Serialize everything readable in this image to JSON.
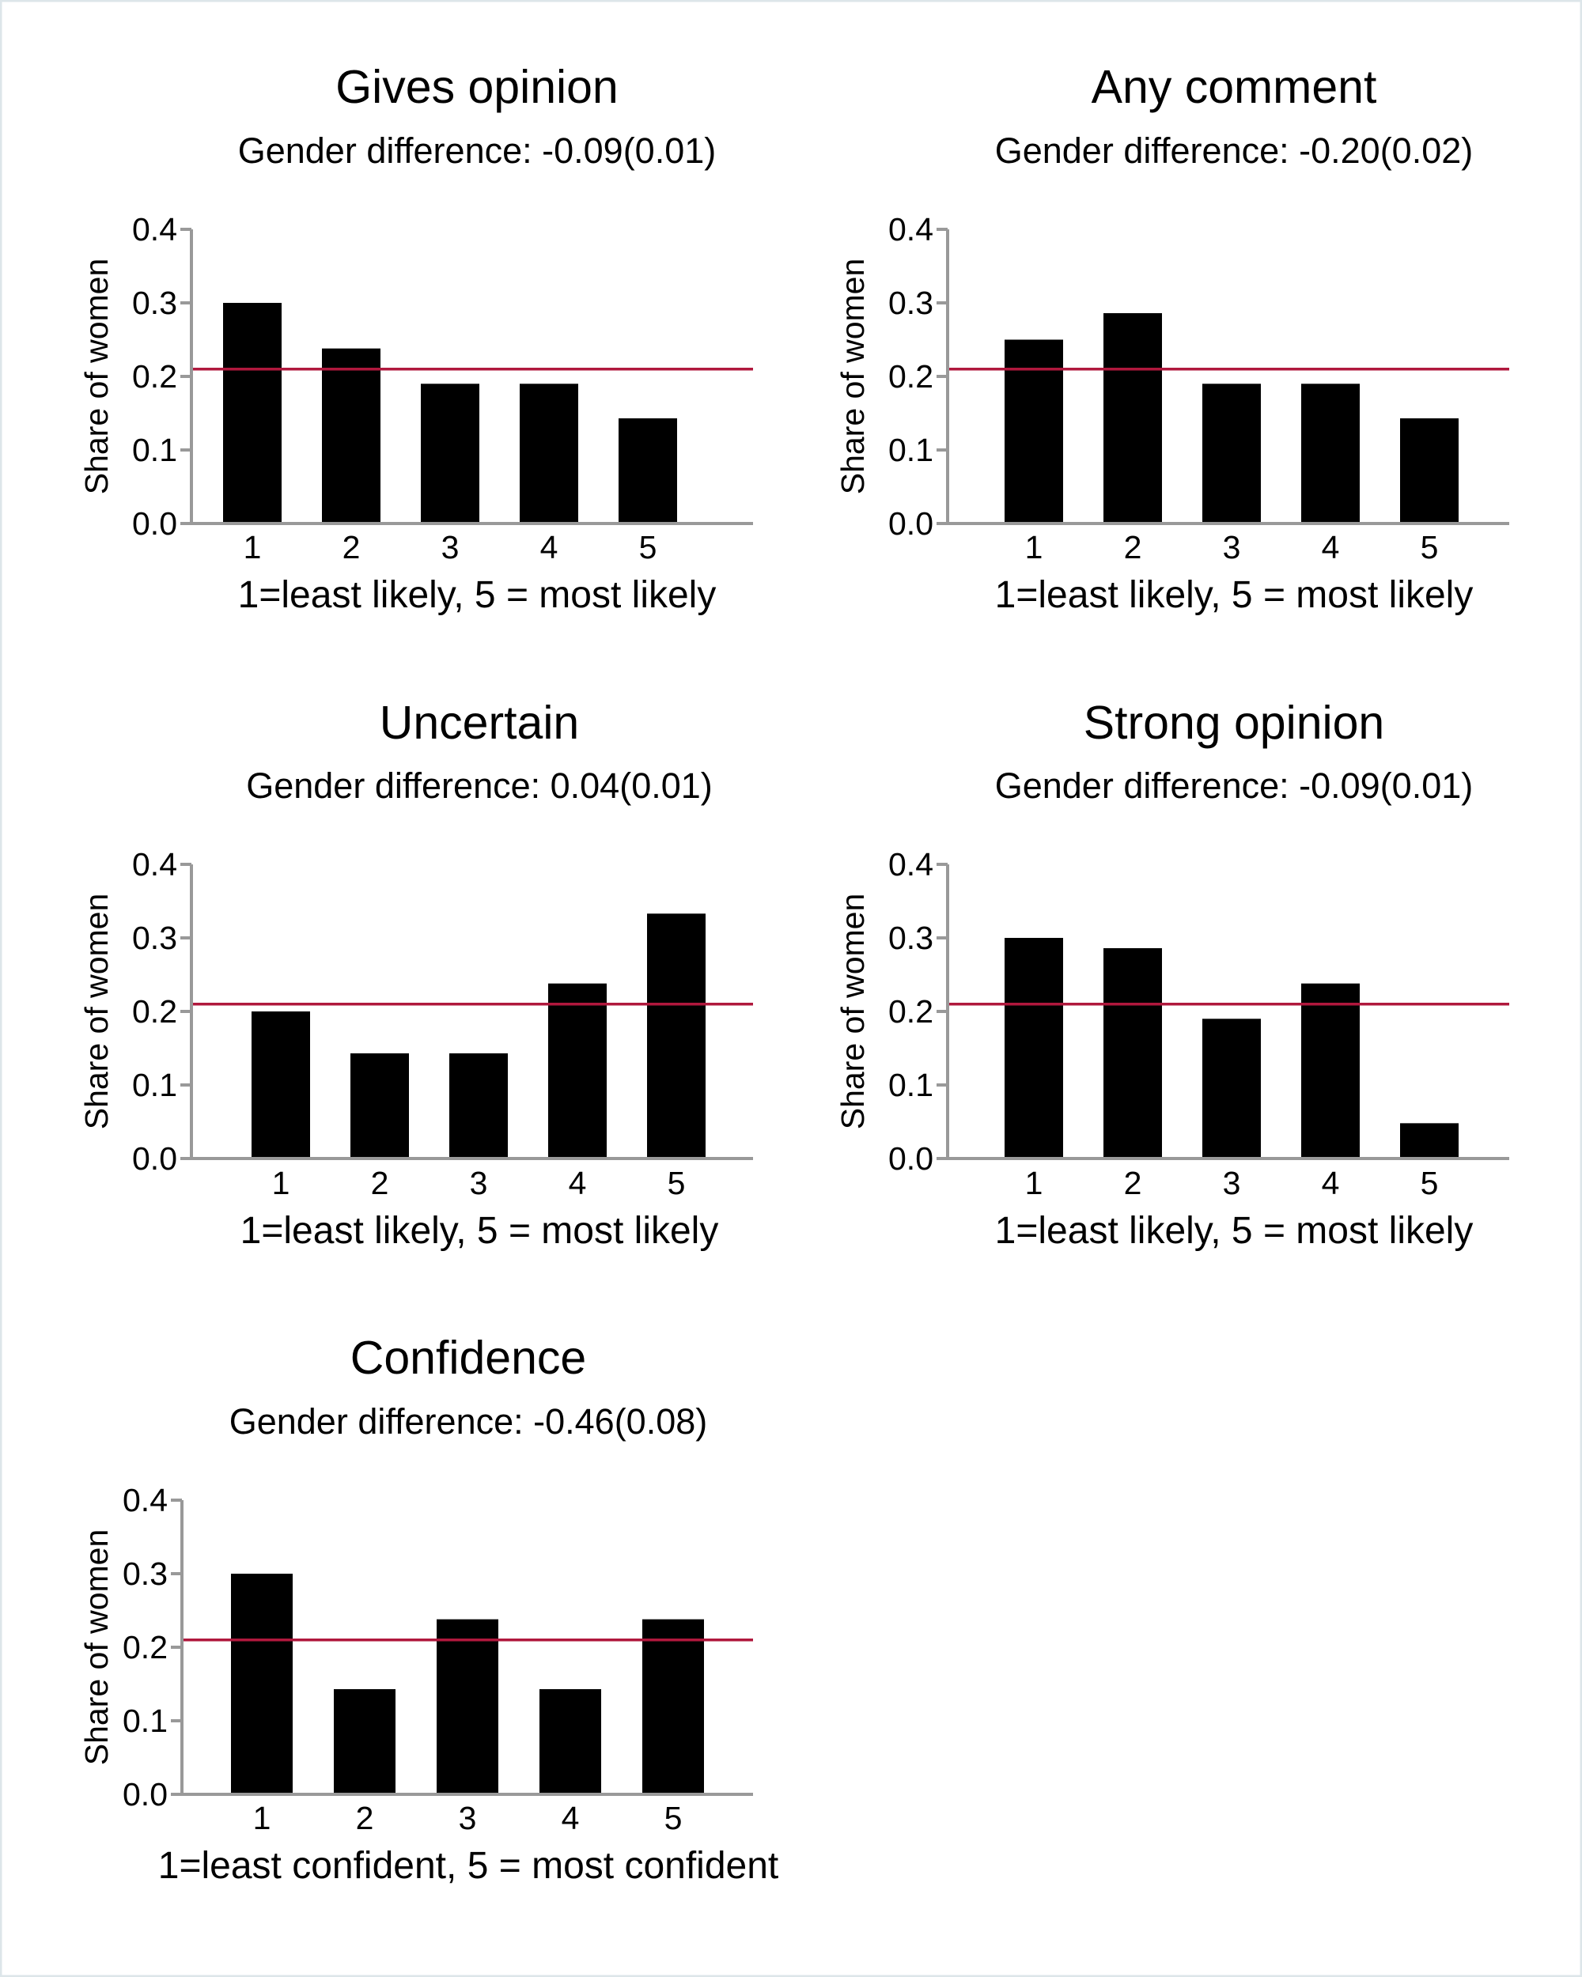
{
  "chart_data": [
    {
      "type": "bar",
      "title": "Gives opinion",
      "subtitle": "Gender difference: -0.09(0.01)",
      "xlabel": "1=least likely, 5 = most likely",
      "ylabel": "Share of women",
      "categories": [
        "1",
        "2",
        "3",
        "4",
        "5"
      ],
      "values": [
        0.3,
        0.238,
        0.19,
        0.19,
        0.143
      ],
      "ylim": [
        0,
        0.4
      ],
      "yticks": [
        "0.0",
        "0.1",
        "0.2",
        "0.3",
        "0.4"
      ],
      "reference_line": 0.21,
      "grid": false
    },
    {
      "type": "bar",
      "title": "Any comment",
      "subtitle": "Gender difference: -0.20(0.02)",
      "xlabel": "1=least likely, 5 = most likely",
      "ylabel": "Share of women",
      "categories": [
        "1",
        "2",
        "3",
        "4",
        "5"
      ],
      "values": [
        0.25,
        0.286,
        0.19,
        0.19,
        0.143
      ],
      "ylim": [
        0,
        0.4
      ],
      "yticks": [
        "0.0",
        "0.1",
        "0.2",
        "0.3",
        "0.4"
      ],
      "reference_line": 0.21,
      "grid": false
    },
    {
      "type": "bar",
      "title": "Uncertain",
      "subtitle": "Gender difference: 0.04(0.01)",
      "xlabel": "1=least likely, 5 = most likely",
      "ylabel": "Share of women",
      "categories": [
        "1",
        "2",
        "3",
        "4",
        "5"
      ],
      "values": [
        0.2,
        0.143,
        0.143,
        0.238,
        0.333
      ],
      "ylim": [
        0,
        0.4
      ],
      "yticks": [
        "0.0",
        "0.1",
        "0.2",
        "0.3",
        "0.4"
      ],
      "reference_line": 0.21,
      "grid": false
    },
    {
      "type": "bar",
      "title": "Strong opinion",
      "subtitle": "Gender difference: -0.09(0.01)",
      "xlabel": "1=least likely, 5 = most likely",
      "ylabel": "Share of women",
      "categories": [
        "1",
        "2",
        "3",
        "4",
        "5"
      ],
      "values": [
        0.3,
        0.286,
        0.19,
        0.238,
        0.048
      ],
      "ylim": [
        0,
        0.4
      ],
      "yticks": [
        "0.0",
        "0.1",
        "0.2",
        "0.3",
        "0.4"
      ],
      "reference_line": 0.21,
      "grid": false
    },
    {
      "type": "bar",
      "title": "Confidence",
      "subtitle": "Gender difference: -0.46(0.08)",
      "xlabel": "1=least confident, 5 = most confident",
      "ylabel": "Share of women",
      "categories": [
        "1",
        "2",
        "3",
        "4",
        "5"
      ],
      "values": [
        0.3,
        0.143,
        0.238,
        0.143,
        0.238
      ],
      "ylim": [
        0,
        0.4
      ],
      "yticks": [
        "0.0",
        "0.1",
        "0.2",
        "0.3",
        "0.4"
      ],
      "reference_line": 0.21,
      "grid": false
    }
  ],
  "colors": {
    "background": "#ffffff",
    "border": "#dde6ea",
    "bar": "#000000",
    "axis": "#999999",
    "reference_line": "#b0183d"
  }
}
